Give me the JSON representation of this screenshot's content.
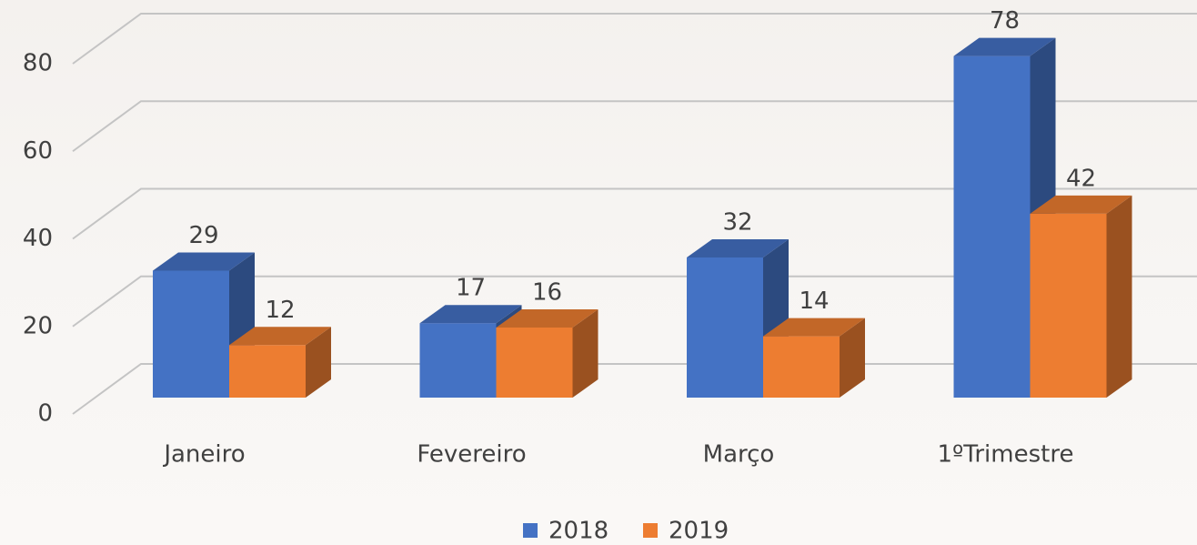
{
  "chart_data": {
    "type": "bar3d",
    "categories": [
      "Janeiro",
      "Fevereiro",
      "Março",
      "1ºTrimestre"
    ],
    "series": [
      {
        "name": "2018",
        "color": "#4472c4",
        "values": [
          29,
          17,
          32,
          78
        ]
      },
      {
        "name": "2019",
        "color": "#ed7d31",
        "values": [
          12,
          16,
          14,
          42
        ]
      }
    ],
    "ylim": [
      0,
      80
    ],
    "yticks": [
      0,
      20,
      40,
      60,
      80
    ],
    "grid": true,
    "legend": "bottom"
  }
}
